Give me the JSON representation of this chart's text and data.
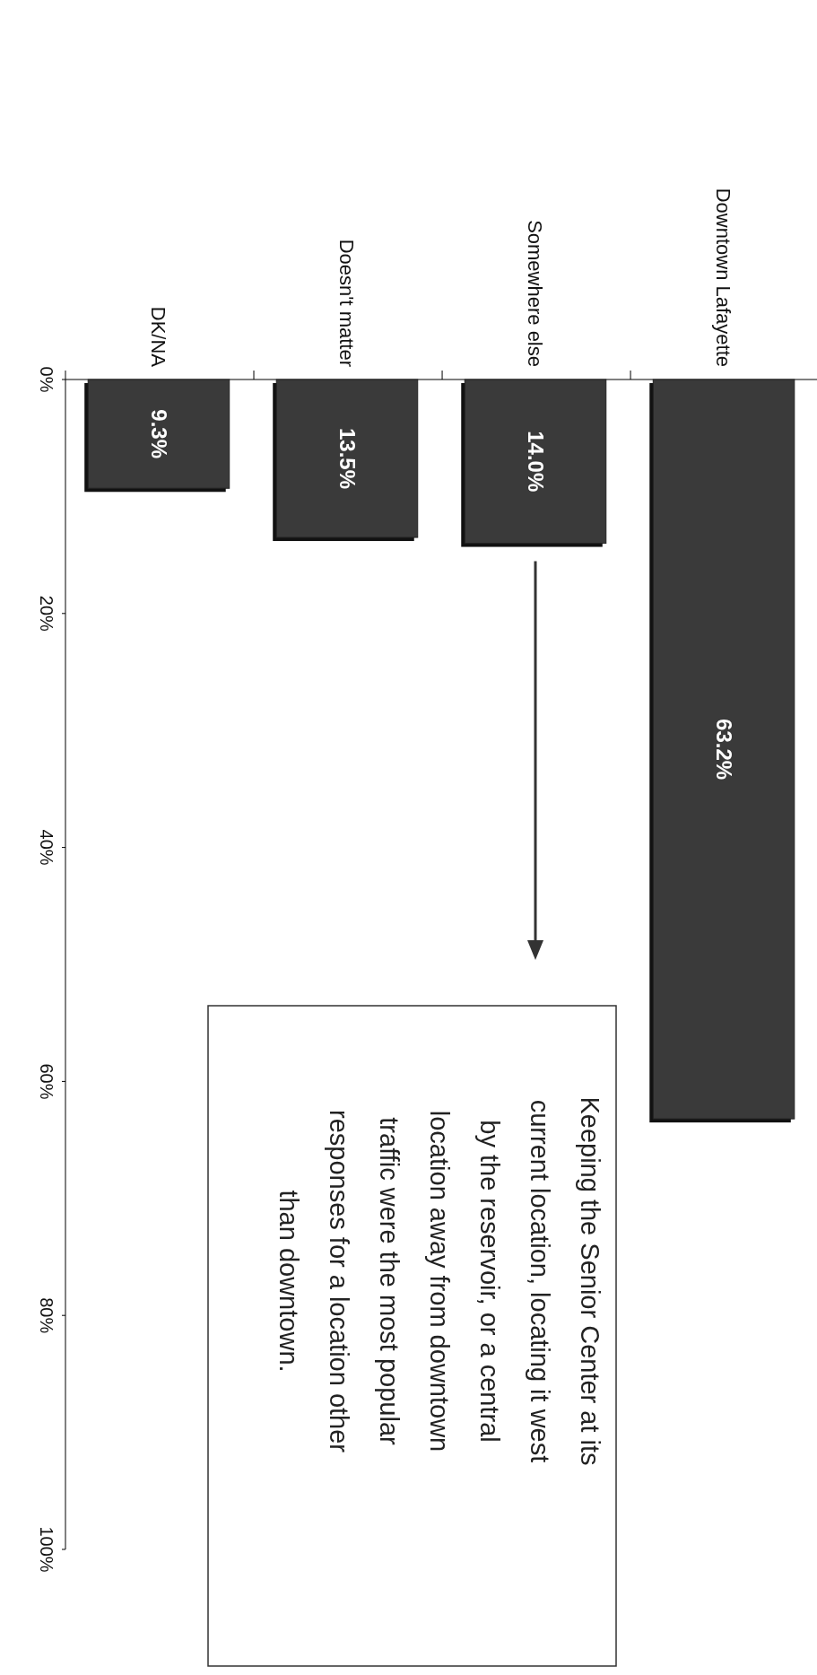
{
  "chart_data": {
    "type": "bar",
    "categories": [
      "DK/NA",
      "Doesn't matter",
      "Somewhere else",
      "Downtown Lafayette"
    ],
    "values": [
      9.3,
      13.5,
      14.0,
      63.2
    ],
    "value_labels": [
      "9.3%",
      "13.5%",
      "14.0%",
      "63.2%"
    ],
    "color": "#3a3a3a",
    "ylim": [
      100,
      0
    ],
    "yticks": [
      {
        "value": 0,
        "label": "0%"
      },
      {
        "value": 20,
        "label": "20%"
      },
      {
        "value": 40,
        "label": "40%"
      },
      {
        "value": 60,
        "label": "60%"
      },
      {
        "value": 80,
        "label": "80%"
      },
      {
        "value": 100,
        "label": "100%"
      }
    ],
    "annotations": [
      "Keeping the Senior Center at its\ncurrent location, locating it west\nby the reservoir, or a central\nlocation away from downtown\ntraffic were the most popular\nresponses for a location other\nthan downtown."
    ]
  }
}
